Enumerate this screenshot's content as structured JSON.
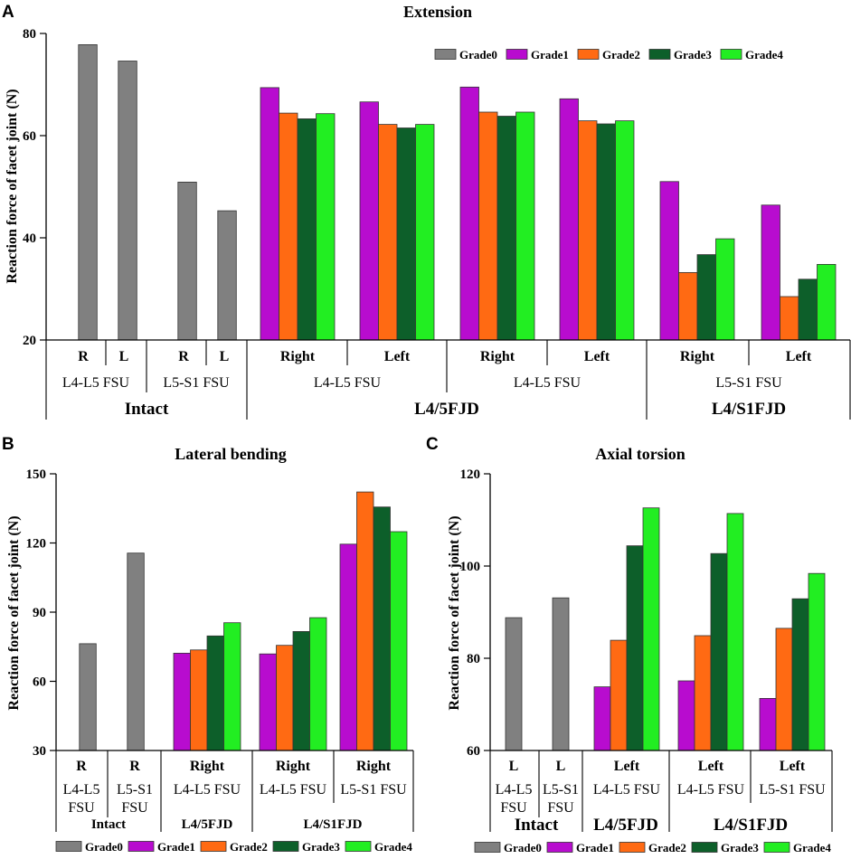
{
  "colors": {
    "Grade0": "#808080",
    "Grade1": "#b80ccf",
    "Grade2": "#ff6a13",
    "Grade3": "#0d5f2a",
    "Grade4": "#22ee22"
  },
  "legend": [
    "Grade0",
    "Grade1",
    "Grade2",
    "Grade3",
    "Grade4"
  ],
  "chart_data": [
    {
      "panel": "A",
      "type": "bar",
      "title": "Extension",
      "ylabel": "Reaction force of facet joint (N)",
      "ylim": [
        20,
        80
      ],
      "yticks": [
        20,
        40,
        60,
        80
      ],
      "legend_position": "top-right",
      "groups": [
        {
          "label": "R",
          "bars": [
            {
              "series": "Grade0",
              "value": 77.8
            }
          ]
        },
        {
          "label": "L",
          "bars": [
            {
              "series": "Grade0",
              "value": 74.6
            }
          ]
        },
        {
          "label": "R",
          "bars": [
            {
              "series": "Grade0",
              "value": 50.9
            }
          ]
        },
        {
          "label": "L",
          "bars": [
            {
              "series": "Grade0",
              "value": 45.3
            }
          ]
        },
        {
          "label": "Right",
          "bars": [
            {
              "series": "Grade1",
              "value": 69.4
            },
            {
              "series": "Grade2",
              "value": 64.4
            },
            {
              "series": "Grade3",
              "value": 63.3
            },
            {
              "series": "Grade4",
              "value": 64.3
            }
          ]
        },
        {
          "label": "Left",
          "bars": [
            {
              "series": "Grade1",
              "value": 66.6
            },
            {
              "series": "Grade2",
              "value": 62.2
            },
            {
              "series": "Grade3",
              "value": 61.5
            },
            {
              "series": "Grade4",
              "value": 62.2
            }
          ]
        },
        {
          "label": "Right",
          "bars": [
            {
              "series": "Grade1",
              "value": 69.5
            },
            {
              "series": "Grade2",
              "value": 64.6
            },
            {
              "series": "Grade3",
              "value": 63.8
            },
            {
              "series": "Grade4",
              "value": 64.6
            }
          ]
        },
        {
          "label": "Left",
          "bars": [
            {
              "series": "Grade1",
              "value": 67.2
            },
            {
              "series": "Grade2",
              "value": 62.9
            },
            {
              "series": "Grade3",
              "value": 62.3
            },
            {
              "series": "Grade4",
              "value": 62.9
            }
          ]
        },
        {
          "label": "Right",
          "bars": [
            {
              "series": "Grade1",
              "value": 51.0
            },
            {
              "series": "Grade2",
              "value": 33.2
            },
            {
              "series": "Grade3",
              "value": 36.7
            },
            {
              "series": "Grade4",
              "value": 39.8
            }
          ]
        },
        {
          "label": "Left",
          "bars": [
            {
              "series": "Grade1",
              "value": 46.4
            },
            {
              "series": "Grade2",
              "value": 28.5
            },
            {
              "series": "Grade3",
              "value": 31.9
            },
            {
              "series": "Grade4",
              "value": 34.8
            }
          ]
        }
      ],
      "level2": [
        "L4-L5 FSU",
        "L5-S1 FSU",
        "L4-L5 FSU",
        "L4-L5 FSU",
        "L5-S1 FSU"
      ],
      "level3": [
        "Intact",
        "L4/5FJD",
        "L4/S1FJD"
      ]
    },
    {
      "panel": "B",
      "type": "bar",
      "title": "Lateral bending",
      "ylabel": "Reaction force of facet joint (N)",
      "ylim": [
        30,
        150
      ],
      "yticks": [
        30,
        60,
        90,
        120,
        150
      ],
      "legend_position": "bottom",
      "groups": [
        {
          "label": "R",
          "bars": [
            {
              "series": "Grade0",
              "value": 76.3
            }
          ]
        },
        {
          "label": "R",
          "bars": [
            {
              "series": "Grade0",
              "value": 115.6
            }
          ]
        },
        {
          "label": "Right",
          "bars": [
            {
              "series": "Grade1",
              "value": 72.2
            },
            {
              "series": "Grade2",
              "value": 73.6
            },
            {
              "series": "Grade3",
              "value": 79.7
            },
            {
              "series": "Grade4",
              "value": 85.4
            }
          ]
        },
        {
          "label": "Right",
          "bars": [
            {
              "series": "Grade1",
              "value": 71.9
            },
            {
              "series": "Grade2",
              "value": 75.6
            },
            {
              "series": "Grade3",
              "value": 81.6
            },
            {
              "series": "Grade4",
              "value": 87.6
            }
          ]
        },
        {
          "label": "Right",
          "bars": [
            {
              "series": "Grade1",
              "value": 119.5
            },
            {
              "series": "Grade2",
              "value": 142.1
            },
            {
              "series": "Grade3",
              "value": 135.6
            },
            {
              "series": "Grade4",
              "value": 124.9
            }
          ]
        }
      ],
      "level2a": [
        "L4-L5",
        "L5-S1",
        "L4-L5 FSU",
        "L4-L5 FSU",
        "L5-S1 FSU"
      ],
      "level2b": [
        "FSU",
        "FSU"
      ],
      "level3": [
        "Intact",
        "L4/5FJD",
        "L4/S1FJD"
      ]
    },
    {
      "panel": "C",
      "type": "bar",
      "title": "Axial torsion",
      "ylabel": "Reaction force of facet joint (N)",
      "ylim": [
        60,
        120
      ],
      "yticks": [
        60,
        80,
        100,
        120
      ],
      "legend_position": "bottom",
      "groups": [
        {
          "label": "L",
          "bars": [
            {
              "series": "Grade0",
              "value": 88.8
            }
          ]
        },
        {
          "label": "L",
          "bars": [
            {
              "series": "Grade0",
              "value": 93.1
            }
          ]
        },
        {
          "label": "Left",
          "bars": [
            {
              "series": "Grade1",
              "value": 73.8
            },
            {
              "series": "Grade2",
              "value": 83.9
            },
            {
              "series": "Grade3",
              "value": 104.4
            },
            {
              "series": "Grade4",
              "value": 112.6
            }
          ]
        },
        {
          "label": "Left",
          "bars": [
            {
              "series": "Grade1",
              "value": 75.1
            },
            {
              "series": "Grade2",
              "value": 84.9
            },
            {
              "series": "Grade3",
              "value": 102.7
            },
            {
              "series": "Grade4",
              "value": 111.4
            }
          ]
        },
        {
          "label": "Left",
          "bars": [
            {
              "series": "Grade1",
              "value": 71.3
            },
            {
              "series": "Grade2",
              "value": 86.5
            },
            {
              "series": "Grade3",
              "value": 92.9
            },
            {
              "series": "Grade4",
              "value": 98.4
            }
          ]
        }
      ],
      "level2a": [
        "L4-L5",
        "L5-S1",
        "L4-L5 FSU",
        "L4-L5 FSU",
        "L5-S1 FSU"
      ],
      "level2b": [
        "FSU",
        "FSU"
      ],
      "level3": [
        "Intact",
        "L4/5FJD",
        "L4/S1FJD"
      ]
    }
  ]
}
